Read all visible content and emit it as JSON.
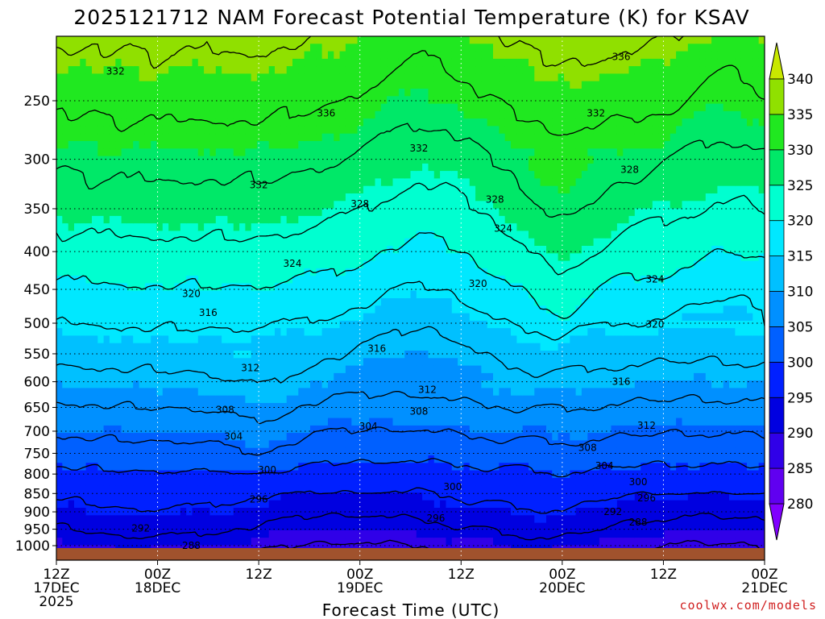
{
  "chart_data": {
    "type": "heatmap",
    "title": "2025121712 NAM Forecast Potential Temperature (K) for KSAV",
    "xlabel": "Forecast Time (UTC)",
    "ylabel": "",
    "credit": "coolwx.com/models",
    "y_scale": "log-pressure",
    "y_reversed": true,
    "ylim": [
      1000,
      200
    ],
    "y_ticks": [
      250,
      300,
      350,
      400,
      450,
      500,
      550,
      600,
      650,
      700,
      750,
      800,
      850,
      900,
      950,
      1000
    ],
    "x_range_hours": [
      0,
      84
    ],
    "x_ticks": [
      {
        "hour": 0,
        "lines": [
          "12Z",
          "17DEC",
          "2025"
        ]
      },
      {
        "hour": 12,
        "lines": [
          "00Z",
          "18DEC"
        ]
      },
      {
        "hour": 24,
        "lines": [
          "12Z"
        ]
      },
      {
        "hour": 36,
        "lines": [
          "00Z",
          "19DEC"
        ]
      },
      {
        "hour": 48,
        "lines": [
          "12Z"
        ]
      },
      {
        "hour": 60,
        "lines": [
          "00Z",
          "20DEC"
        ]
      },
      {
        "hour": 72,
        "lines": [
          "12Z"
        ]
      },
      {
        "hour": 84,
        "lines": [
          "00Z",
          "21DEC"
        ]
      }
    ],
    "colorbar": {
      "levels": [
        280,
        285,
        290,
        295,
        300,
        305,
        310,
        315,
        320,
        325,
        330,
        335,
        340
      ],
      "colors": [
        "#8000ff",
        "#6000f0",
        "#3000e8",
        "#0000e0",
        "#0020ff",
        "#0060ff",
        "#0090ff",
        "#00c0ff",
        "#00e8ff",
        "#00ffd0",
        "#00e868",
        "#20e820",
        "#90e000",
        "#c8e800"
      ],
      "labels": [
        "280",
        "285",
        "290",
        "295",
        "300",
        "305",
        "310",
        "315",
        "320",
        "325",
        "330",
        "335",
        "340"
      ]
    },
    "contour_interval": 4,
    "contour_levels": [
      288,
      292,
      296,
      300,
      304,
      308,
      312,
      316,
      320,
      324,
      328,
      332,
      336
    ],
    "contour_labels": [
      {
        "text": "336",
        "hour": 67,
        "pressure": 218
      },
      {
        "text": "332",
        "hour": 7,
        "pressure": 228
      },
      {
        "text": "336",
        "hour": 32,
        "pressure": 260
      },
      {
        "text": "332",
        "hour": 64,
        "pressure": 260
      },
      {
        "text": "332",
        "hour": 43,
        "pressure": 290
      },
      {
        "text": "332",
        "hour": 24,
        "pressure": 325
      },
      {
        "text": "328",
        "hour": 68,
        "pressure": 310
      },
      {
        "text": "328",
        "hour": 36,
        "pressure": 345
      },
      {
        "text": "328",
        "hour": 52,
        "pressure": 340
      },
      {
        "text": "324",
        "hour": 53,
        "pressure": 372
      },
      {
        "text": "324",
        "hour": 28,
        "pressure": 415
      },
      {
        "text": "324",
        "hour": 71,
        "pressure": 436
      },
      {
        "text": "320",
        "hour": 16,
        "pressure": 456
      },
      {
        "text": "320",
        "hour": 50,
        "pressure": 442
      },
      {
        "text": "316",
        "hour": 18,
        "pressure": 484
      },
      {
        "text": "320",
        "hour": 71,
        "pressure": 502
      },
      {
        "text": "316",
        "hour": 38,
        "pressure": 541
      },
      {
        "text": "312",
        "hour": 23,
        "pressure": 575
      },
      {
        "text": "316",
        "hour": 67,
        "pressure": 600
      },
      {
        "text": "312",
        "hour": 44,
        "pressure": 615
      },
      {
        "text": "308",
        "hour": 20,
        "pressure": 655
      },
      {
        "text": "308",
        "hour": 43,
        "pressure": 658
      },
      {
        "text": "304",
        "hour": 37,
        "pressure": 690
      },
      {
        "text": "312",
        "hour": 70,
        "pressure": 688
      },
      {
        "text": "304",
        "hour": 21,
        "pressure": 712
      },
      {
        "text": "308",
        "hour": 63,
        "pressure": 737
      },
      {
        "text": "304",
        "hour": 65,
        "pressure": 780
      },
      {
        "text": "300",
        "hour": 25,
        "pressure": 790
      },
      {
        "text": "300",
        "hour": 69,
        "pressure": 820
      },
      {
        "text": "300",
        "hour": 47,
        "pressure": 832
      },
      {
        "text": "296",
        "hour": 24,
        "pressure": 865
      },
      {
        "text": "296",
        "hour": 70,
        "pressure": 862
      },
      {
        "text": "292",
        "hour": 66,
        "pressure": 900
      },
      {
        "text": "296",
        "hour": 45,
        "pressure": 918
      },
      {
        "text": "288",
        "hour": 69,
        "pressure": 930
      },
      {
        "text": "292",
        "hour": 10,
        "pressure": 948
      },
      {
        "text": "288",
        "hour": 16,
        "pressure": 1000
      }
    ]
  }
}
